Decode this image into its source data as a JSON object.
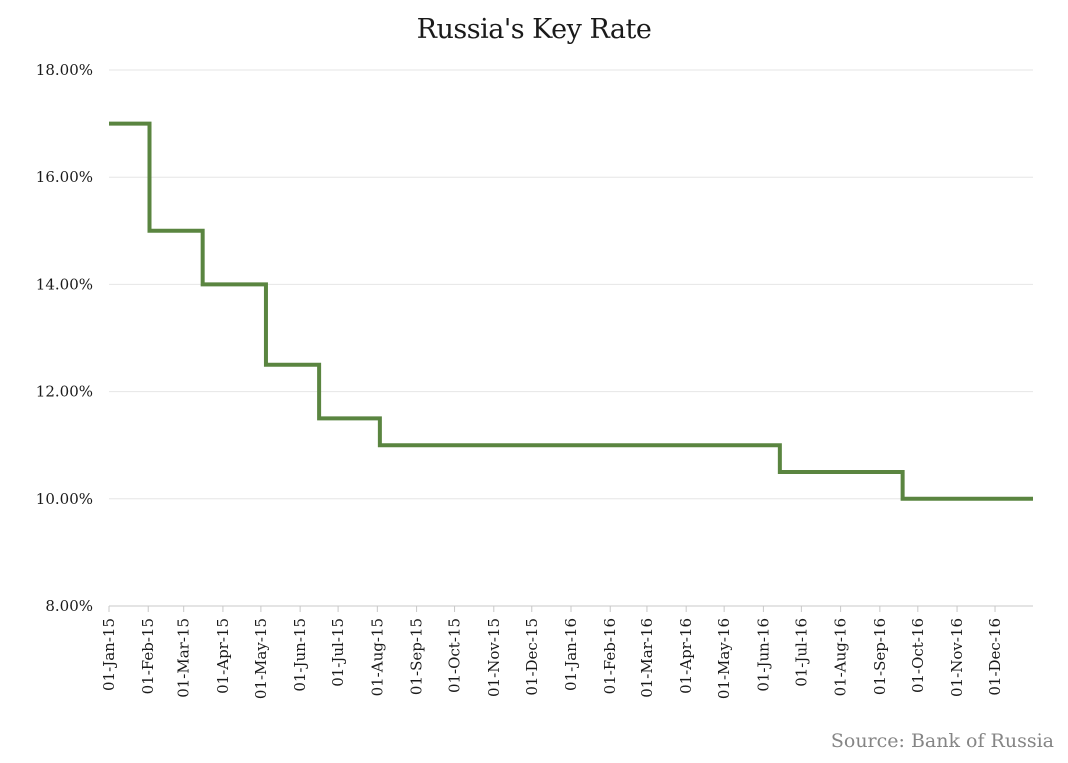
{
  "chart": {
    "title": "Russia's Key Rate",
    "source": "Source: Bank of Russia"
  },
  "colors": {
    "line": "#5a8540",
    "grid": "#e6e6e6",
    "axis": "#c8c8c8"
  },
  "chart_data": {
    "type": "line",
    "step": true,
    "title": "Russia's Key Rate",
    "xlabel": "",
    "ylabel": "",
    "ylim": [
      0.08,
      0.18
    ],
    "yticks": [
      "8.00%",
      "10.00%",
      "12.00%",
      "14.00%",
      "16.00%",
      "18.00%"
    ],
    "xlim": [
      "2015-01-01",
      "2016-12-31"
    ],
    "xticks": [
      "01-Jan-15",
      "01-Feb-15",
      "01-Mar-15",
      "01-Apr-15",
      "01-May-15",
      "01-Jun-15",
      "01-Jul-15",
      "01-Aug-15",
      "01-Sep-15",
      "01-Oct-15",
      "01-Nov-15",
      "01-Dec-15",
      "01-Jan-16",
      "01-Feb-16",
      "01-Mar-16",
      "01-Apr-16",
      "01-May-16",
      "01-Jun-16",
      "01-Jul-16",
      "01-Aug-16",
      "01-Sep-16",
      "01-Oct-16",
      "01-Nov-16",
      "01-Dec-16"
    ],
    "grid": true,
    "legend": null,
    "series": [
      {
        "name": "Key Rate",
        "points": [
          {
            "date": "2015-01-01",
            "value": 17.0
          },
          {
            "date": "2015-02-02",
            "value": 15.0
          },
          {
            "date": "2015-03-16",
            "value": 14.0
          },
          {
            "date": "2015-05-05",
            "value": 12.5
          },
          {
            "date": "2015-06-16",
            "value": 11.5
          },
          {
            "date": "2015-08-03",
            "value": 11.0
          },
          {
            "date": "2016-06-14",
            "value": 10.5
          },
          {
            "date": "2016-09-19",
            "value": 10.0
          },
          {
            "date": "2016-12-31",
            "value": 10.0
          }
        ]
      }
    ]
  }
}
